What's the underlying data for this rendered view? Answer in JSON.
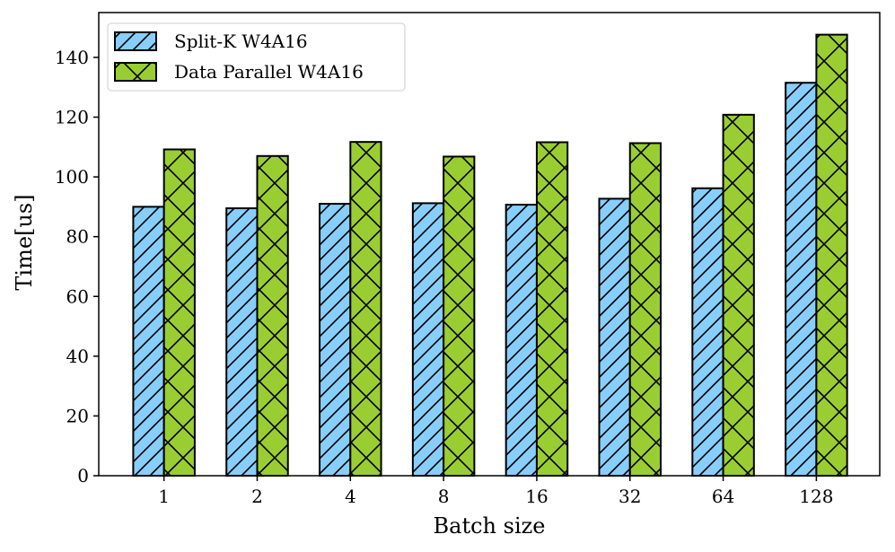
{
  "chart_data": {
    "type": "bar",
    "title": "",
    "xlabel": "Batch size",
    "ylabel": "Time[us]",
    "categories": [
      "1",
      "2",
      "4",
      "8",
      "16",
      "32",
      "64",
      "128"
    ],
    "ylim": [
      0,
      155
    ],
    "yticks": [
      0,
      20,
      40,
      60,
      80,
      100,
      120,
      140
    ],
    "grid": false,
    "legend_position": "top-left",
    "series": [
      {
        "name": "Split-K W4A16",
        "color": "#87CEFA",
        "hatch": "diagonal",
        "values": [
          90,
          89.5,
          91,
          91.2,
          90.7,
          92.7,
          96.2,
          131.5
        ]
      },
      {
        "name": "Data Parallel W4A16",
        "color": "#9ACD32",
        "hatch": "cross",
        "values": [
          109.2,
          107,
          111.7,
          106.8,
          111.6,
          111.3,
          120.8,
          147.6
        ]
      }
    ]
  }
}
